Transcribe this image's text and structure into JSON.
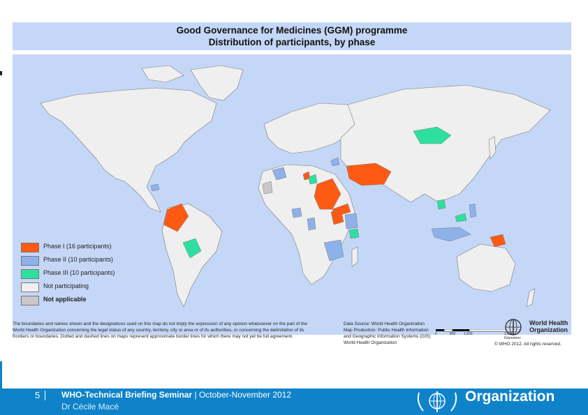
{
  "map": {
    "title": "Good Governance for Medicines (GGM) programme",
    "subtitle": "Distribution of participants, by phase",
    "colors": {
      "ocean": "#c5d7f7",
      "phase1": "#ff5a14",
      "phase2": "#8fb1ea",
      "phase3": "#2ee0a0",
      "not_participating": "#efefef",
      "not_applicable": "#c8c8c8",
      "border": "#7a7a7a"
    },
    "legend": [
      {
        "label": "Phase I (16 participants)",
        "color": "#ff5a14"
      },
      {
        "label": "Phase II (10 participants)",
        "color": "#8fb1ea"
      },
      {
        "label": "Phase III (10 participants)",
        "color": "#2ee0a0"
      },
      {
        "label": "Not participating",
        "color": "#efefef"
      },
      {
        "label": "Not applicable",
        "color": "#c8c8c8"
      }
    ],
    "scale": {
      "labels": [
        "0",
        "800",
        "1,600",
        "3,600 Kilometers"
      ]
    },
    "disclaimer": "The boundaries and names shown and the designations used on this map do not imply the expression of any opinion whatsoever on the part of the World Health Organization concerning the legal status of any country, territory, city or area or of its authorities, or concerning the delimitation of its frontiers or boundaries. Dotted and dashed lines on maps represent approximate border lines for which there may not yet be full agreement.",
    "data_source": [
      "Data Source: World Health Organization",
      "Map Production: Public Health Information",
      "and Geographic Information Systems (GIS)",
      "World Health Organization"
    ],
    "who_name": [
      "World Health",
      "Organization"
    ],
    "copyright": "© WHO 2012. All rights reserved."
  },
  "footer": {
    "slide_number": "5",
    "seminar_bold": "WHO-Technical Briefing Seminar",
    "seminar_dates": "October-November 2012",
    "presenter": "Dr Cécile Macé",
    "org": "Organization"
  }
}
